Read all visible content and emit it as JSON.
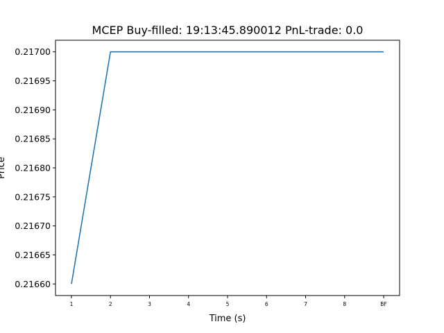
{
  "chart_data": {
    "type": "line",
    "title": "MCEP  Buy-filled:  19:13:45.890012  PnL-trade:  0.0",
    "xlabel": "Time (s)",
    "ylabel": "Price",
    "categories": [
      "1",
      "2",
      "3",
      "4",
      "5",
      "6",
      "7",
      "8",
      "BF"
    ],
    "series": [
      {
        "values": [
          0.2166,
          0.217,
          0.217,
          0.217,
          0.217,
          0.217,
          0.217,
          0.217,
          0.217
        ]
      }
    ],
    "ylim": [
      0.21658,
      0.21702
    ],
    "yticks": [
      "0.21660",
      "0.21665",
      "0.21670",
      "0.21675",
      "0.21680",
      "0.21685",
      "0.21690",
      "0.21695",
      "0.21700"
    ],
    "grid": false,
    "line_color": "#1f77b4"
  }
}
